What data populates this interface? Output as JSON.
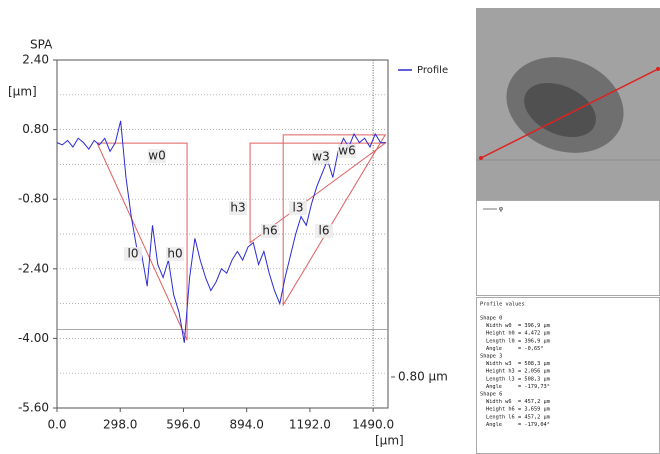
{
  "chart_data": {
    "type": "line",
    "title": "SPA",
    "y_label": "[µm]",
    "x_label": "[µm]",
    "xlim": [
      0,
      1560
    ],
    "ylim": [
      -5.6,
      2.4
    ],
    "xticks": [
      {
        "value": 0,
        "label": "0.0"
      },
      {
        "value": 298,
        "label": "298.0"
      },
      {
        "value": 596,
        "label": "596.0"
      },
      {
        "value": 894,
        "label": "894.0"
      },
      {
        "value": 1192,
        "label": "1192.0"
      },
      {
        "value": 1490,
        "label": "1490.0"
      }
    ],
    "yticks": [
      {
        "value": 2.4,
        "label": "2.40"
      },
      {
        "value": 0.8,
        "label": "0.80"
      },
      {
        "value": -0.8,
        "label": "-0.80"
      },
      {
        "value": -2.4,
        "label": "-2.40"
      },
      {
        "value": -4,
        "label": "-4.00"
      },
      {
        "value": -5.6,
        "label": "-5.60"
      }
    ],
    "ygrid": [
      1.6,
      0.8,
      0,
      -0.8,
      -1.6,
      -2.4,
      -3.2,
      -4,
      -4.8
    ],
    "cursor_x": 1490,
    "cursor_y": -3.8,
    "scale_label": "0.80 µm",
    "legend": "Profile",
    "series": [
      {
        "name": "Profile",
        "color": "#2b2bd6",
        "x": [
          0,
          25,
          50,
          75,
          100,
          125,
          150,
          175,
          200,
          225,
          250,
          275,
          300,
          325,
          350,
          375,
          400,
          425,
          450,
          475,
          500,
          525,
          550,
          575,
          600,
          625,
          650,
          675,
          700,
          725,
          750,
          775,
          800,
          825,
          850,
          875,
          900,
          925,
          950,
          975,
          1000,
          1025,
          1050,
          1075,
          1100,
          1125,
          1150,
          1175,
          1200,
          1225,
          1250,
          1275,
          1300,
          1325,
          1350,
          1375,
          1400,
          1425,
          1450,
          1475,
          1500,
          1525,
          1550
        ],
        "values": [
          0.5,
          0.45,
          0.55,
          0.4,
          0.6,
          0.5,
          0.35,
          0.55,
          0.45,
          0.6,
          0.3,
          0.5,
          1.0,
          -0.3,
          -1.2,
          -1.9,
          -2.1,
          -2.8,
          -1.4,
          -2.3,
          -2.6,
          -2.2,
          -3.0,
          -3.4,
          -4.1,
          -2.6,
          -1.7,
          -2.2,
          -2.6,
          -2.9,
          -2.7,
          -2.4,
          -2.5,
          -2.2,
          -2.0,
          -2.2,
          -1.9,
          -1.8,
          -2.3,
          -2.0,
          -2.5,
          -2.9,
          -3.2,
          -2.6,
          -2.1,
          -1.6,
          -1.2,
          -1.4,
          -0.9,
          -0.5,
          -0.2,
          0.1,
          -0.3,
          0.3,
          0.6,
          0.4,
          0.7,
          0.5,
          0.6,
          0.4,
          0.7,
          0.5,
          0.5
        ]
      }
    ],
    "shapes": [
      {
        "color": "#e06060",
        "labels": [
          "w0",
          "h0",
          "l0"
        ],
        "x": [
          189,
          613,
          613
        ],
        "y": [
          0.49,
          0.49,
          -4.04
        ]
      },
      {
        "color": "#e06060",
        "labels": [
          "h3",
          "w3",
          "l3"
        ],
        "x": [
          910,
          910,
          1547
        ],
        "y": [
          -1.8,
          0.49,
          0.49
        ]
      },
      {
        "color": "#e06060",
        "labels": [
          "h6",
          "w6",
          "l6"
        ],
        "x": [
          1066,
          1066,
          1547
        ],
        "y": [
          -3.23,
          0.68,
          0.68
        ]
      }
    ]
  },
  "mini_legend": "φ",
  "profile_values": {
    "title": "Profile values",
    "groups": [
      {
        "name": "Shape 0",
        "rows": [
          [
            "Width w0",
            "= 396,9 µm"
          ],
          [
            "Height h0",
            "= 4,472 µm"
          ],
          [
            "Length l0",
            "= 396,9 µm"
          ],
          [
            "Angle",
            "= -0,65°"
          ]
        ]
      },
      {
        "name": "Shape 3",
        "rows": [
          [
            "Width w3",
            "= 508,3 µm"
          ],
          [
            "Height h3",
            "= 2,056 µm"
          ],
          [
            "Length l3",
            "= 508,3 µm"
          ],
          [
            "Angle",
            "= -179,73°"
          ]
        ]
      },
      {
        "name": "Shape 6",
        "rows": [
          [
            "Width w6",
            "= 457,2 µm"
          ],
          [
            "Height h6",
            "= 3,659 µm"
          ],
          [
            "Length l6",
            "= 457,2 µm"
          ],
          [
            "Angle",
            "= -179,04°"
          ]
        ]
      }
    ]
  }
}
